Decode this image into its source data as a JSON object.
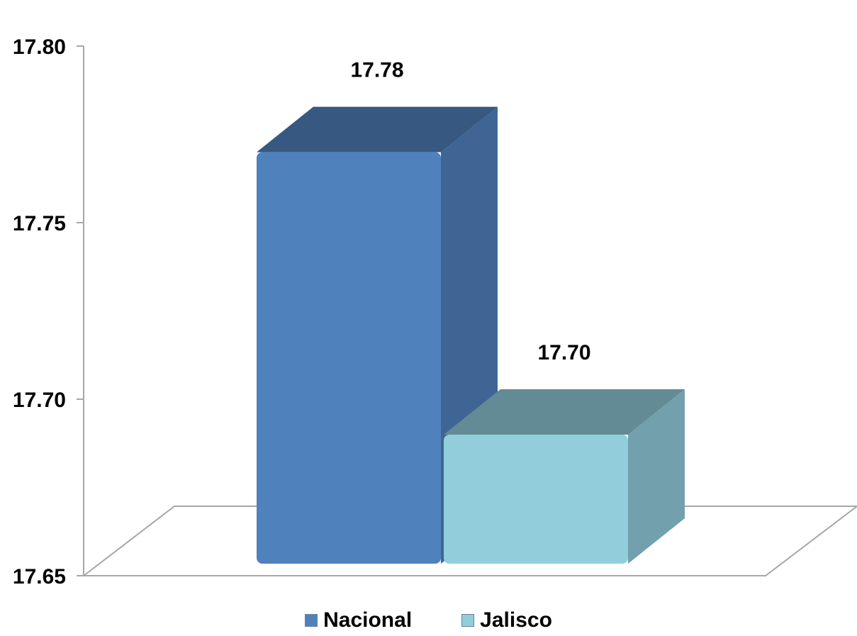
{
  "chart_data": {
    "type": "bar",
    "style": "3d-column",
    "categories": [
      ""
    ],
    "series": [
      {
        "name": "Nacional",
        "values": [
          17.78
        ],
        "color": "#4f81bd"
      },
      {
        "name": "Jalisco",
        "values": [
          17.7
        ],
        "color": "#92cddc"
      }
    ],
    "data_labels": [
      "17.78",
      "17.70"
    ],
    "y_ticks": [
      "17.80",
      "17.75",
      "17.70",
      "17.65"
    ],
    "ylim": [
      17.65,
      17.8
    ],
    "grid": false,
    "legend_position": "bottom"
  },
  "legend": {
    "items": [
      {
        "label": "Nacional",
        "color": "#4f81bd"
      },
      {
        "label": "Jalisco",
        "color": "#92cddc"
      }
    ]
  }
}
